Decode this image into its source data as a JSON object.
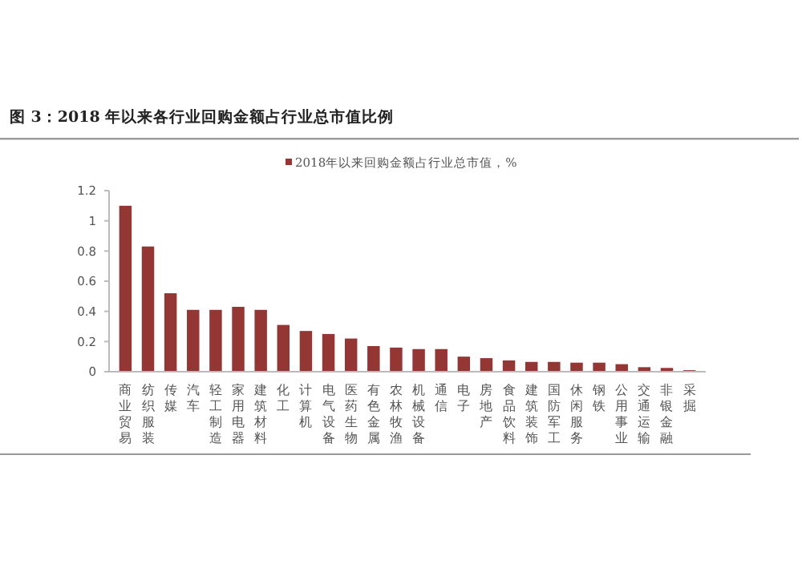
{
  "chart_data": {
    "type": "bar",
    "title": "图 3：2018 年以来各行业回购金额占行业总市值比例",
    "categories": [
      "商业贸易",
      "纺织服装",
      "传媒",
      "汽车",
      "轻工制造",
      "家用电器",
      "建筑材料",
      "化工",
      "计算机",
      "电气设备",
      "医药生物",
      "有色金属",
      "农林牧渔",
      "机械设备",
      "通信",
      "电子",
      "房地产",
      "食品饮料",
      "建筑装饰",
      "国防军工",
      "休闲服务",
      "钢铁",
      "公用事业",
      "交通运输",
      "非银金融",
      "采掘"
    ],
    "series": [
      {
        "name": "2018年以来回购金额占行业总市值，%",
        "color": "#943634",
        "values": [
          1.1,
          0.83,
          0.52,
          0.41,
          0.41,
          0.43,
          0.41,
          0.31,
          0.27,
          0.25,
          0.22,
          0.17,
          0.16,
          0.15,
          0.15,
          0.1,
          0.09,
          0.075,
          0.065,
          0.065,
          0.06,
          0.06,
          0.05,
          0.03,
          0.025,
          0.01
        ]
      }
    ],
    "ylim": [
      0,
      1.2
    ],
    "yticks": [
      0,
      0.2,
      0.4,
      0.6,
      0.8,
      1,
      1.2
    ],
    "legend": "top",
    "grid": false
  }
}
